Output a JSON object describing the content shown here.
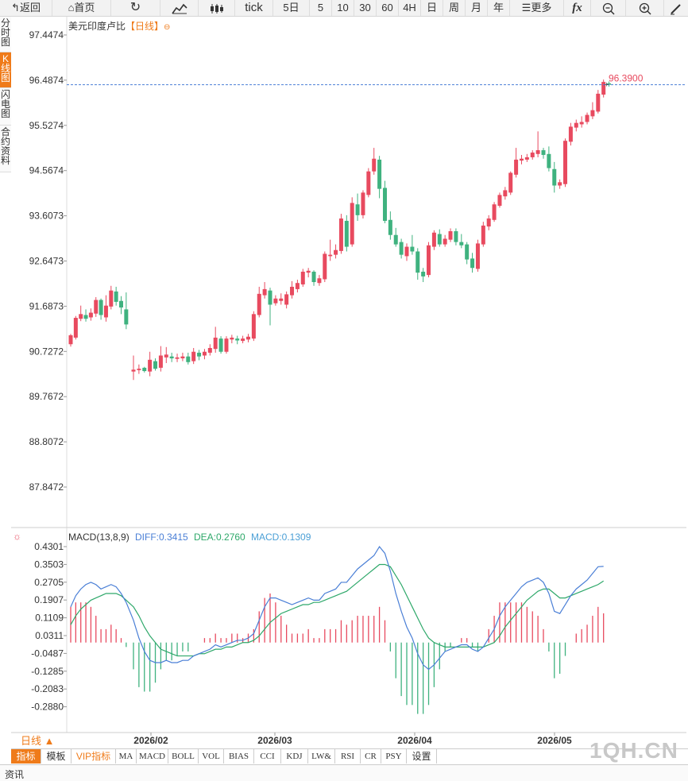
{
  "toolbar": {
    "back": "返回",
    "home": "首页",
    "tick": "tick",
    "five_day": "5日",
    "p5": "5",
    "p10": "10",
    "p30": "30",
    "p60": "60",
    "p4h": "4H",
    "day": "日",
    "week": "周",
    "month": "月",
    "year": "年",
    "more": "更多",
    "fx": "fx"
  },
  "leftnav": {
    "timeshare": "分时图",
    "kline": "K线图",
    "flash": "闪电图",
    "contract": "合约资料"
  },
  "chart": {
    "title": "美元印度卢比",
    "period": "【日线】",
    "price_ticks": [
      "97.4474",
      "96.4874",
      "95.5274",
      "94.5674",
      "93.6073",
      "92.6473",
      "91.6873",
      "90.7272",
      "89.7672",
      "88.8072",
      "87.8472"
    ],
    "last_price": "96.3900",
    "date_ticks": [
      "2026/02",
      "2026/03",
      "2026/04",
      "2026/05"
    ]
  },
  "macd": {
    "label": "MACD(13,8,9)",
    "diff": "DIFF:0.3415",
    "dea": "DEA:0.2760",
    "macd": "MACD:0.1309",
    "ticks": [
      "0.4301",
      "0.3503",
      "0.2705",
      "0.1907",
      "0.1109",
      "0.0311",
      "-0.0487",
      "-0.1285",
      "-0.2083",
      "-0.2880"
    ]
  },
  "colors": {
    "up": "#e84a5f",
    "down": "#3fb27f",
    "diff": "#4a7fd6",
    "dea": "#2ea86a",
    "accent": "#ef7b1a"
  },
  "bottom": {
    "period_select": "日线 ▲",
    "tabs": [
      "指标",
      "模板",
      "VIP指标",
      "MA",
      "MACD",
      "BOLL",
      "VOL",
      "BIAS",
      "CCI",
      "KDJ",
      "LW&",
      "RSI",
      "CR",
      "PSY",
      "设置"
    ]
  },
  "footer": {
    "news": "资讯",
    "watermark": "1QH.CN"
  },
  "chart_data": {
    "type": "candlestick",
    "title": "美元印度卢比",
    "ylim": [
      87.3,
      97.7
    ],
    "candles": [
      [
        90.88,
        91.07,
        90.83,
        91.1
      ],
      [
        91.02,
        91.44,
        90.98,
        91.48
      ],
      [
        91.42,
        91.52,
        91.37,
        91.7
      ],
      [
        91.5,
        91.42,
        91.36,
        91.62
      ],
      [
        91.45,
        91.55,
        91.38,
        91.64
      ],
      [
        91.53,
        91.82,
        91.46,
        91.88
      ],
      [
        91.82,
        91.5,
        91.4,
        91.85
      ],
      [
        91.45,
        91.7,
        91.36,
        91.92
      ],
      [
        91.68,
        92.02,
        91.62,
        92.12
      ],
      [
        92.0,
        91.78,
        91.7,
        92.1
      ],
      [
        91.8,
        91.66,
        91.52,
        91.9
      ],
      [
        91.62,
        91.3,
        91.2,
        91.98
      ],
      [
        90.3,
        90.34,
        90.12,
        90.64
      ],
      [
        90.33,
        90.36,
        90.25,
        90.45
      ],
      [
        90.38,
        90.31,
        90.28,
        90.4
      ],
      [
        90.3,
        90.55,
        90.2,
        90.72
      ],
      [
        90.52,
        90.36,
        90.32,
        90.58
      ],
      [
        90.38,
        90.64,
        90.3,
        90.84
      ],
      [
        90.6,
        90.66,
        90.48,
        90.82
      ],
      [
        90.62,
        90.58,
        90.5,
        90.7
      ],
      [
        90.57,
        90.6,
        90.5,
        90.68
      ],
      [
        90.58,
        90.62,
        90.52,
        90.7
      ],
      [
        90.62,
        90.5,
        90.45,
        90.7
      ],
      [
        90.52,
        90.72,
        90.46,
        90.8
      ],
      [
        90.7,
        90.62,
        90.54,
        90.76
      ],
      [
        90.64,
        90.72,
        90.56,
        90.78
      ],
      [
        90.7,
        90.8,
        90.64,
        90.88
      ],
      [
        90.78,
        91.02,
        90.7,
        91.25
      ],
      [
        91.0,
        90.72,
        90.68,
        91.05
      ],
      [
        90.72,
        91.0,
        90.68,
        91.05
      ],
      [
        90.98,
        91.02,
        90.9,
        91.08
      ],
      [
        91.0,
        90.96,
        90.88,
        91.06
      ],
      [
        90.95,
        91.0,
        90.9,
        91.06
      ],
      [
        90.98,
        91.04,
        90.92,
        91.1
      ],
      [
        91.0,
        91.52,
        90.95,
        91.58
      ],
      [
        91.5,
        91.95,
        91.45,
        92.1
      ],
      [
        91.92,
        92.05,
        91.85,
        92.2
      ],
      [
        92.02,
        91.72,
        91.28,
        92.08
      ],
      [
        91.75,
        91.85,
        91.7,
        91.92
      ],
      [
        91.8,
        91.85,
        91.72,
        91.96
      ],
      [
        91.72,
        91.94,
        91.64,
        92.0
      ],
      [
        91.92,
        92.1,
        91.85,
        92.22
      ],
      [
        92.05,
        92.18,
        91.98,
        92.25
      ],
      [
        92.15,
        92.42,
        92.1,
        92.48
      ],
      [
        92.4,
        92.44,
        92.3,
        92.5
      ],
      [
        92.42,
        92.2,
        92.12,
        92.45
      ],
      [
        92.18,
        92.28,
        92.12,
        92.35
      ],
      [
        92.26,
        92.8,
        92.2,
        92.85
      ],
      [
        92.75,
        92.78,
        92.65,
        93.1
      ],
      [
        92.78,
        92.88,
        92.7,
        93.0
      ],
      [
        92.86,
        93.55,
        92.8,
        93.65
      ],
      [
        93.5,
        92.95,
        92.85,
        93.62
      ],
      [
        93.0,
        93.88,
        92.95,
        94.0
      ],
      [
        93.85,
        93.62,
        93.5,
        94.08
      ],
      [
        93.62,
        94.1,
        93.55,
        94.15
      ],
      [
        94.05,
        94.55,
        94.0,
        94.62
      ],
      [
        94.55,
        94.82,
        94.48,
        95.05
      ],
      [
        94.8,
        94.18,
        93.98,
        94.88
      ],
      [
        94.2,
        93.5,
        93.45,
        94.35
      ],
      [
        93.52,
        93.2,
        93.1,
        93.7
      ],
      [
        93.2,
        93.0,
        92.95,
        93.35
      ],
      [
        93.05,
        92.78,
        92.7,
        93.12
      ],
      [
        92.75,
        92.95,
        92.65,
        93.02
      ],
      [
        92.95,
        92.85,
        92.78,
        93.2
      ],
      [
        92.85,
        92.4,
        92.25,
        92.92
      ],
      [
        92.42,
        92.32,
        92.2,
        92.5
      ],
      [
        92.35,
        92.98,
        92.3,
        93.05
      ],
      [
        92.95,
        93.25,
        92.88,
        93.3
      ],
      [
        93.22,
        93.0,
        92.95,
        93.32
      ],
      [
        93.0,
        93.12,
        92.95,
        93.2
      ],
      [
        93.1,
        93.28,
        93.05,
        93.34
      ],
      [
        93.28,
        93.05,
        92.98,
        93.34
      ],
      [
        93.05,
        92.98,
        92.92,
        93.22
      ],
      [
        93.0,
        92.68,
        92.58,
        93.05
      ],
      [
        92.7,
        92.5,
        92.4,
        92.82
      ],
      [
        92.48,
        93.02,
        92.42,
        93.1
      ],
      [
        93.0,
        93.4,
        92.95,
        93.48
      ],
      [
        93.38,
        93.55,
        93.3,
        93.62
      ],
      [
        93.52,
        93.85,
        93.48,
        93.9
      ],
      [
        93.82,
        94.05,
        93.78,
        94.1
      ],
      [
        94.02,
        94.15,
        93.95,
        94.22
      ],
      [
        94.1,
        94.52,
        94.05,
        94.55
      ],
      [
        94.48,
        94.8,
        94.42,
        95.05
      ],
      [
        94.78,
        94.82,
        94.7,
        94.9
      ],
      [
        94.8,
        94.85,
        94.75,
        94.92
      ],
      [
        94.85,
        94.95,
        94.8,
        95.0
      ],
      [
        94.92,
        95.0,
        94.85,
        95.4
      ],
      [
        95.0,
        94.9,
        94.82,
        95.05
      ],
      [
        94.92,
        94.62,
        94.55,
        95.08
      ],
      [
        94.6,
        94.25,
        94.1,
        94.75
      ],
      [
        94.25,
        94.32,
        94.18,
        94.38
      ],
      [
        94.28,
        95.2,
        94.22,
        95.25
      ],
      [
        95.18,
        95.5,
        95.1,
        95.58
      ],
      [
        95.48,
        95.58,
        95.4,
        95.65
      ],
      [
        95.55,
        95.6,
        95.48,
        95.72
      ],
      [
        95.6,
        95.75,
        95.55,
        95.8
      ],
      [
        95.72,
        95.85,
        95.66,
        96.02
      ],
      [
        95.82,
        96.2,
        95.78,
        96.28
      ],
      [
        96.18,
        96.45,
        96.12,
        96.5
      ],
      [
        96.42,
        96.39,
        96.35,
        96.46
      ]
    ],
    "macd_diff": [
      0.16,
      0.21,
      0.24,
      0.26,
      0.27,
      0.26,
      0.24,
      0.25,
      0.26,
      0.25,
      0.22,
      0.18,
      0.1,
      0.02,
      -0.04,
      -0.08,
      -0.09,
      -0.09,
      -0.08,
      -0.09,
      -0.09,
      -0.08,
      -0.08,
      -0.06,
      -0.05,
      -0.04,
      -0.03,
      -0.01,
      -0.02,
      -0.01,
      0.0,
      0.01,
      0.01,
      0.02,
      0.04,
      0.1,
      0.16,
      0.2,
      0.2,
      0.19,
      0.18,
      0.17,
      0.18,
      0.19,
      0.2,
      0.19,
      0.19,
      0.22,
      0.23,
      0.24,
      0.27,
      0.27,
      0.3,
      0.33,
      0.35,
      0.37,
      0.39,
      0.43,
      0.4,
      0.32,
      0.22,
      0.14,
      0.07,
      0.02,
      -0.05,
      -0.1,
      -0.12,
      -0.1,
      -0.07,
      -0.04,
      -0.03,
      -0.02,
      -0.01,
      -0.01,
      -0.03,
      -0.04,
      -0.02,
      0.02,
      0.06,
      0.12,
      0.16,
      0.19,
      0.22,
      0.25,
      0.27,
      0.28,
      0.29,
      0.27,
      0.22,
      0.14,
      0.13,
      0.17,
      0.21,
      0.24,
      0.26,
      0.28,
      0.31,
      0.34,
      0.3415
    ],
    "macd_dea": [
      0.08,
      0.12,
      0.15,
      0.17,
      0.19,
      0.2,
      0.21,
      0.22,
      0.22,
      0.22,
      0.21,
      0.19,
      0.16,
      0.12,
      0.07,
      0.03,
      0.0,
      -0.03,
      -0.04,
      -0.05,
      -0.06,
      -0.06,
      -0.06,
      -0.06,
      -0.05,
      -0.05,
      -0.04,
      -0.03,
      -0.03,
      -0.02,
      -0.02,
      -0.01,
      0.0,
      0.0,
      0.01,
      0.03,
      0.06,
      0.09,
      0.11,
      0.13,
      0.14,
      0.15,
      0.16,
      0.17,
      0.17,
      0.18,
      0.18,
      0.19,
      0.2,
      0.21,
      0.22,
      0.23,
      0.25,
      0.27,
      0.29,
      0.31,
      0.33,
      0.35,
      0.35,
      0.34,
      0.3,
      0.26,
      0.21,
      0.16,
      0.11,
      0.06,
      0.02,
      0.0,
      -0.01,
      -0.02,
      -0.02,
      -0.02,
      -0.02,
      -0.02,
      -0.02,
      -0.02,
      -0.02,
      -0.01,
      0.0,
      0.03,
      0.07,
      0.1,
      0.13,
      0.16,
      0.19,
      0.21,
      0.23,
      0.24,
      0.24,
      0.22,
      0.2,
      0.2,
      0.21,
      0.22,
      0.23,
      0.24,
      0.25,
      0.26,
      0.276
    ]
  }
}
